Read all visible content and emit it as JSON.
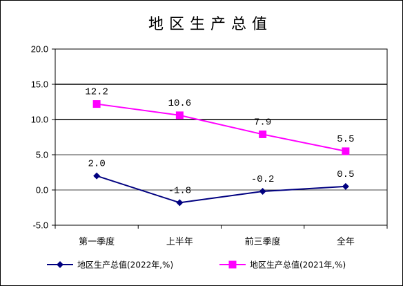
{
  "chart_data": {
    "type": "line",
    "title": "地区生产总值",
    "categories": [
      "第一季度",
      "上半年",
      "前三季度",
      "全年"
    ],
    "ylim": [
      -5.0,
      20.0
    ],
    "yticks": [
      "20.0",
      "15.0",
      "10.0",
      "5.0",
      "0.0",
      "-5.0"
    ],
    "ytick_values": [
      20,
      15,
      10,
      5,
      0,
      -5
    ],
    "grid": true,
    "legend_position": "bottom",
    "series": [
      {
        "name": "地区生产总值(2022年,%)",
        "values": [
          2.0,
          -1.8,
          -0.2,
          0.5
        ],
        "labels": [
          "2.0",
          "-1.8",
          "-0.2",
          "0.5"
        ],
        "color": "#000080",
        "marker": "diamond"
      },
      {
        "name": "地区生产总值(2021年,%)",
        "values": [
          12.2,
          10.6,
          7.9,
          5.5
        ],
        "labels": [
          "12.2",
          "10.6",
          "7.9",
          "5.5"
        ],
        "color": "#FF00FF",
        "marker": "square"
      }
    ]
  }
}
